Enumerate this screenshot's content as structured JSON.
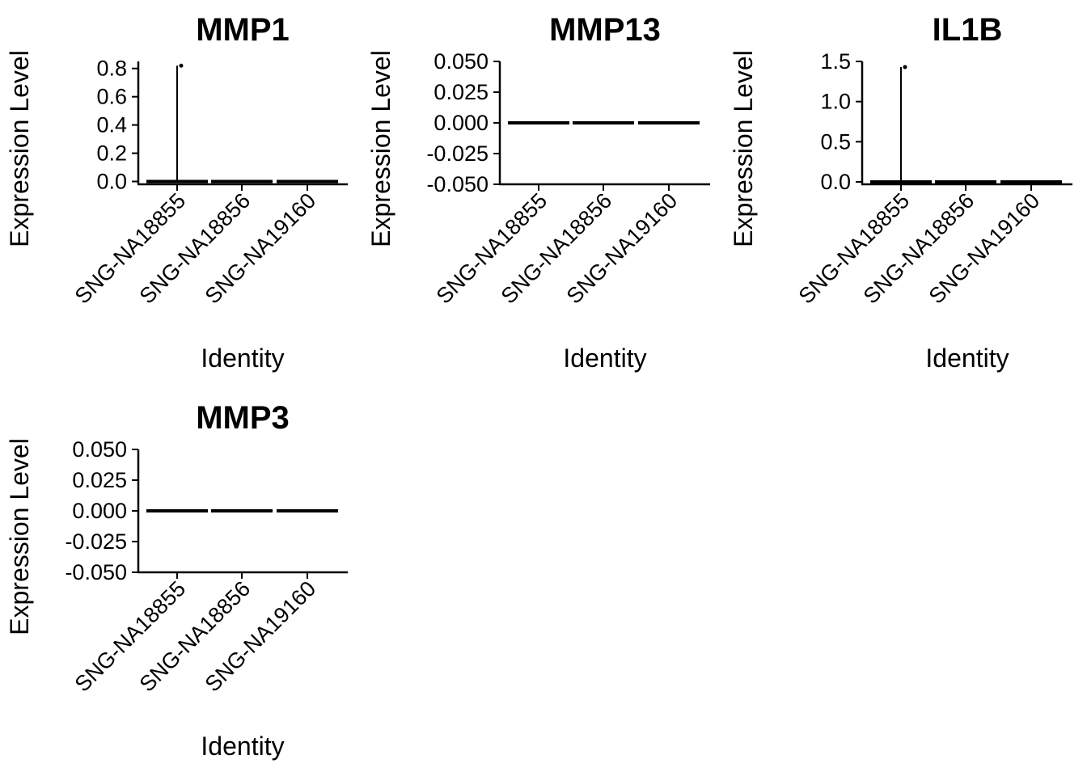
{
  "figure": {
    "ylabel": "Expression Level",
    "xlabel": "Identity",
    "colors": {
      "ink": "#000000",
      "background": "#ffffff"
    }
  },
  "chart_data": [
    {
      "type": "violin",
      "title": "MMP1",
      "xlabel": "Identity",
      "ylabel": "Expression Level",
      "categories": [
        "SNG-NA18855",
        "SNG-NA18856",
        "SNG-NA19160"
      ],
      "ylim": [
        -0.02,
        0.85
      ],
      "yticks": [
        0.0,
        0.2,
        0.4,
        0.6,
        0.8
      ],
      "ytick_labels": [
        "0.0",
        "0.2",
        "0.4",
        "0.6",
        "0.8"
      ],
      "series": [
        {
          "category": "SNG-NA18855",
          "baseline": 0,
          "max": 0.82,
          "outliers": [
            0.82
          ]
        },
        {
          "category": "SNG-NA18856",
          "baseline": 0,
          "max": 0,
          "outliers": []
        },
        {
          "category": "SNG-NA19160",
          "baseline": 0,
          "max": 0,
          "outliers": []
        }
      ]
    },
    {
      "type": "violin",
      "title": "MMP13",
      "xlabel": "Identity",
      "ylabel": "Expression Level",
      "categories": [
        "SNG-NA18855",
        "SNG-NA18856",
        "SNG-NA19160"
      ],
      "ylim": [
        -0.05,
        0.05
      ],
      "yticks": [
        -0.05,
        -0.025,
        0.0,
        0.025,
        0.05
      ],
      "ytick_labels": [
        "-0.050",
        "-0.025",
        "0.000",
        "0.025",
        "0.050"
      ],
      "series": [
        {
          "category": "SNG-NA18855",
          "baseline": 0,
          "max": 0,
          "outliers": []
        },
        {
          "category": "SNG-NA18856",
          "baseline": 0,
          "max": 0,
          "outliers": []
        },
        {
          "category": "SNG-NA19160",
          "baseline": 0,
          "max": 0,
          "outliers": []
        }
      ]
    },
    {
      "type": "violin",
      "title": "IL1B",
      "xlabel": "Identity",
      "ylabel": "Expression Level",
      "categories": [
        "SNG-NA18855",
        "SNG-NA18856",
        "SNG-NA19160"
      ],
      "ylim": [
        -0.03,
        1.5
      ],
      "yticks": [
        0.0,
        0.5,
        1.0,
        1.5
      ],
      "ytick_labels": [
        "0.0",
        "0.5",
        "1.0",
        "1.5"
      ],
      "series": [
        {
          "category": "SNG-NA18855",
          "baseline": 0,
          "max": 1.43,
          "outliers": [
            1.43
          ]
        },
        {
          "category": "SNG-NA18856",
          "baseline": 0,
          "max": 0,
          "outliers": []
        },
        {
          "category": "SNG-NA19160",
          "baseline": 0,
          "max": 0,
          "outliers": []
        }
      ]
    },
    {
      "type": "violin",
      "title": "MMP3",
      "xlabel": "Identity",
      "ylabel": "Expression Level",
      "categories": [
        "SNG-NA18855",
        "SNG-NA18856",
        "SNG-NA19160"
      ],
      "ylim": [
        -0.05,
        0.05
      ],
      "yticks": [
        -0.05,
        -0.025,
        0.0,
        0.025,
        0.05
      ],
      "ytick_labels": [
        "-0.050",
        "-0.025",
        "0.000",
        "0.025",
        "0.050"
      ],
      "series": [
        {
          "category": "SNG-NA18855",
          "baseline": 0,
          "max": 0,
          "outliers": []
        },
        {
          "category": "SNG-NA18856",
          "baseline": 0,
          "max": 0,
          "outliers": []
        },
        {
          "category": "SNG-NA19160",
          "baseline": 0,
          "max": 0,
          "outliers": []
        }
      ]
    }
  ]
}
